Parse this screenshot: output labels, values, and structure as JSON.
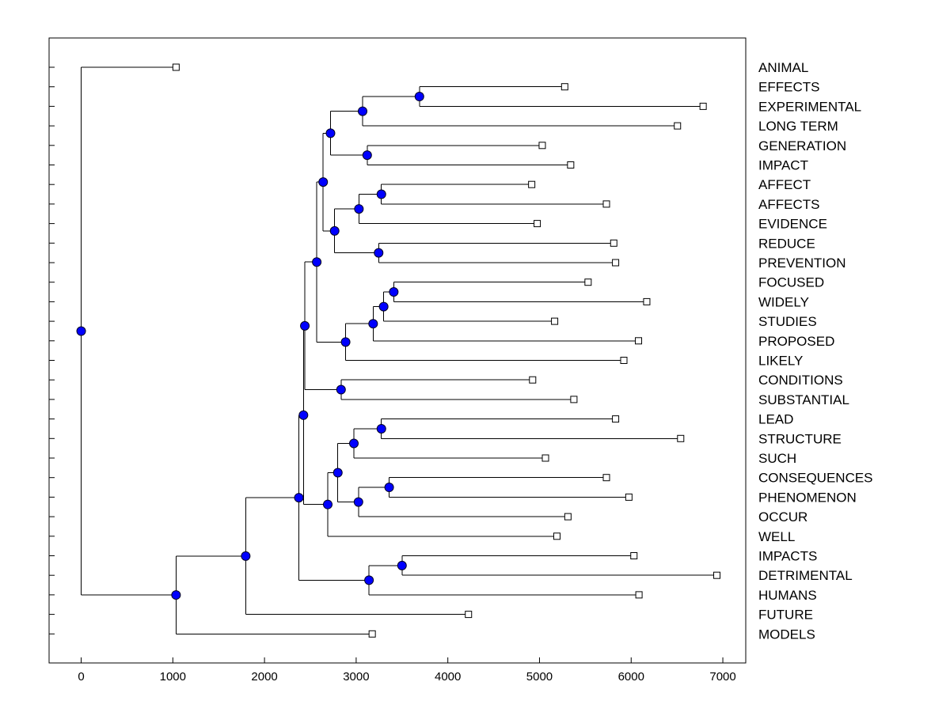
{
  "chart_data": {
    "type": "dendrogram",
    "title": "",
    "xlabel": "",
    "ylabel": "",
    "xlim": [
      -350,
      7250
    ],
    "x_ticks": [
      0,
      1000,
      2000,
      3000,
      4000,
      5000,
      6000,
      7000
    ],
    "x_tick_labels": [
      "0",
      "1000",
      "2000",
      "3000",
      "4000",
      "5000",
      "6000",
      "7000"
    ],
    "grid": false,
    "legend": "none",
    "colors": {
      "node_fill": "#0000ff",
      "line": "#000000",
      "leaf_marker_fill": "#ffffff"
    },
    "leaves": [
      {
        "id": 1,
        "label": "ANIMAL",
        "value": 1035
      },
      {
        "id": 2,
        "label": "EFFECTS",
        "value": 5275
      },
      {
        "id": 3,
        "label": "EXPERIMENTAL",
        "value": 6785
      },
      {
        "id": 4,
        "label": "LONG TERM",
        "value": 6505
      },
      {
        "id": 5,
        "label": "GENERATION",
        "value": 5030
      },
      {
        "id": 6,
        "label": "IMPACT",
        "value": 5340
      },
      {
        "id": 7,
        "label": "AFFECT",
        "value": 4915
      },
      {
        "id": 8,
        "label": "AFFECTS",
        "value": 5730
      },
      {
        "id": 9,
        "label": "EVIDENCE",
        "value": 4975
      },
      {
        "id": 10,
        "label": "REDUCE",
        "value": 5810
      },
      {
        "id": 11,
        "label": "PREVENTION",
        "value": 5830
      },
      {
        "id": 12,
        "label": "FOCUSED",
        "value": 5530
      },
      {
        "id": 13,
        "label": "WIDELY",
        "value": 6170
      },
      {
        "id": 14,
        "label": "STUDIES",
        "value": 5165
      },
      {
        "id": 15,
        "label": "PROPOSED",
        "value": 6080
      },
      {
        "id": 16,
        "label": "LIKELY",
        "value": 5920
      },
      {
        "id": 17,
        "label": "CONDITIONS",
        "value": 4925
      },
      {
        "id": 18,
        "label": "SUBSTANTIAL",
        "value": 5375
      },
      {
        "id": 19,
        "label": "LEAD",
        "value": 5830
      },
      {
        "id": 20,
        "label": "STRUCTURE",
        "value": 6540
      },
      {
        "id": 21,
        "label": "SUCH",
        "value": 5065
      },
      {
        "id": 22,
        "label": "CONSEQUENCES",
        "value": 5730
      },
      {
        "id": 23,
        "label": "PHENOMENON",
        "value": 5975
      },
      {
        "id": 24,
        "label": "OCCUR",
        "value": 5310
      },
      {
        "id": 25,
        "label": "WELL",
        "value": 5190
      },
      {
        "id": 26,
        "label": "IMPACTS",
        "value": 6030
      },
      {
        "id": 27,
        "label": "DETRIMENTAL",
        "value": 6935
      },
      {
        "id": 28,
        "label": "HUMANS",
        "value": 6085
      },
      {
        "id": 29,
        "label": "FUTURE",
        "value": 4225
      },
      {
        "id": 30,
        "label": "MODELS",
        "value": 3175
      }
    ],
    "merges": [
      {
        "id": 31,
        "value": 3690,
        "children": [
          2,
          3
        ]
      },
      {
        "id": 32,
        "value": 3070,
        "children": [
          31,
          4
        ]
      },
      {
        "id": 33,
        "value": 3120,
        "children": [
          5,
          6
        ]
      },
      {
        "id": 34,
        "value": 2720,
        "children": [
          32,
          33
        ]
      },
      {
        "id": 35,
        "value": 3275,
        "children": [
          7,
          8
        ]
      },
      {
        "id": 36,
        "value": 3030,
        "children": [
          35,
          9
        ]
      },
      {
        "id": 37,
        "value": 3245,
        "children": [
          10,
          11
        ]
      },
      {
        "id": 38,
        "value": 2765,
        "children": [
          36,
          37
        ]
      },
      {
        "id": 39,
        "value": 2640,
        "children": [
          34,
          38
        ]
      },
      {
        "id": 40,
        "value": 3410,
        "children": [
          12,
          13
        ]
      },
      {
        "id": 41,
        "value": 3300,
        "children": [
          40,
          14
        ]
      },
      {
        "id": 42,
        "value": 3185,
        "children": [
          41,
          15
        ]
      },
      {
        "id": 43,
        "value": 2885,
        "children": [
          42,
          16
        ]
      },
      {
        "id": 44,
        "value": 2570,
        "children": [
          39,
          43
        ]
      },
      {
        "id": 45,
        "value": 2835,
        "children": [
          17,
          18
        ]
      },
      {
        "id": 46,
        "value": 2440,
        "children": [
          44,
          45
        ]
      },
      {
        "id": 47,
        "value": 3275,
        "children": [
          19,
          20
        ]
      },
      {
        "id": 48,
        "value": 2975,
        "children": [
          47,
          21
        ]
      },
      {
        "id": 49,
        "value": 3360,
        "children": [
          22,
          23
        ]
      },
      {
        "id": 50,
        "value": 3025,
        "children": [
          49,
          24
        ]
      },
      {
        "id": 51,
        "value": 2800,
        "children": [
          48,
          50
        ]
      },
      {
        "id": 52,
        "value": 2690,
        "children": [
          51,
          25
        ]
      },
      {
        "id": 53,
        "value": 2425,
        "children": [
          46,
          52
        ]
      },
      {
        "id": 54,
        "value": 3500,
        "children": [
          26,
          27
        ]
      },
      {
        "id": 55,
        "value": 3140,
        "children": [
          54,
          28
        ]
      },
      {
        "id": 56,
        "value": 2375,
        "children": [
          53,
          55
        ]
      },
      {
        "id": 57,
        "value": 1795,
        "children": [
          56,
          29
        ]
      },
      {
        "id": 58,
        "value": 1035,
        "children": [
          57,
          30
        ]
      },
      {
        "id": 59,
        "value": 0,
        "children": [
          1,
          58
        ]
      }
    ]
  }
}
